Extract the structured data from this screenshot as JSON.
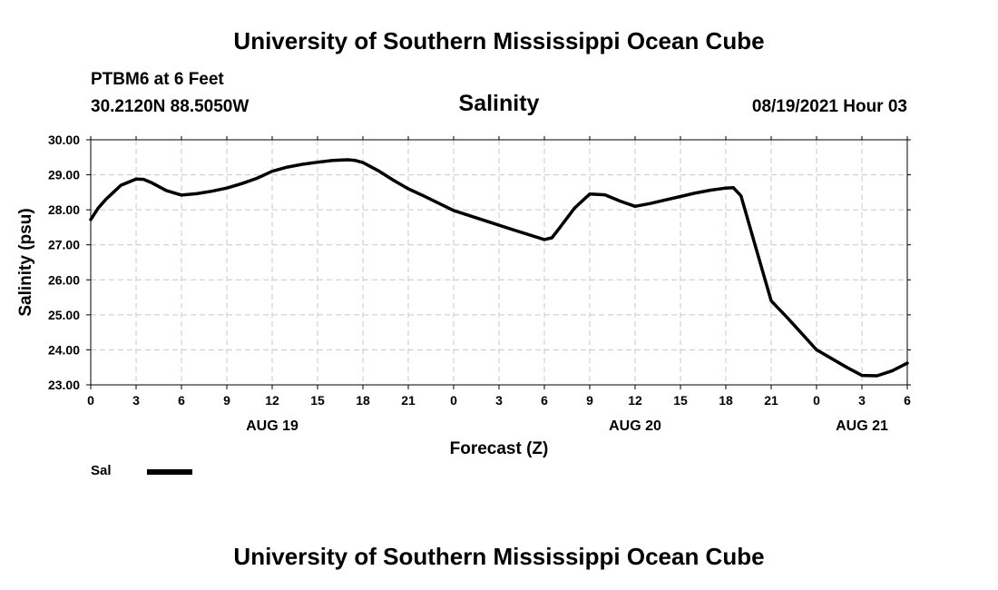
{
  "header": {
    "title": "University of Southern Mississippi Ocean Cube",
    "station": "PTBM6 at 6 Feet",
    "coordinates": "30.2120N  88.5050W",
    "variable_title": "Salinity",
    "datetime": "08/19/2021 Hour 03"
  },
  "footer": {
    "title": "University of Southern Mississippi Ocean Cube"
  },
  "legend": {
    "label": "Sal",
    "color": "#000000"
  },
  "chart_data": {
    "type": "line",
    "title": "Salinity",
    "xlabel": "Forecast (Z)",
    "ylabel": "Salinity (psu)",
    "xlim": [
      0,
      54
    ],
    "ylim": [
      23.0,
      30.0
    ],
    "grid": true,
    "x_tick_values": [
      0,
      3,
      6,
      9,
      12,
      15,
      18,
      21,
      24,
      27,
      30,
      33,
      36,
      39,
      42,
      45,
      48,
      51,
      54
    ],
    "x_tick_labels": [
      "0",
      "3",
      "6",
      "9",
      "12",
      "15",
      "18",
      "21",
      "0",
      "3",
      "6",
      "9",
      "12",
      "15",
      "18",
      "21",
      "0",
      "3",
      "6"
    ],
    "y_tick_values": [
      23,
      24,
      25,
      26,
      27,
      28,
      29,
      30
    ],
    "y_tick_labels": [
      "23.00",
      "24.00",
      "25.00",
      "26.00",
      "27.00",
      "28.00",
      "29.00",
      "30.00"
    ],
    "date_labels": [
      {
        "x": 12,
        "label": "AUG 19"
      },
      {
        "x": 36,
        "label": "AUG 20"
      },
      {
        "x": 51,
        "label": "AUG 21"
      }
    ],
    "series": [
      {
        "name": "Sal",
        "x": [
          0,
          0.5,
          1,
          2,
          3,
          3.5,
          4,
          5,
          6,
          7,
          8,
          9,
          10,
          11,
          12,
          13,
          14,
          15,
          16,
          17,
          17.5,
          18,
          19,
          20,
          21,
          22,
          24,
          26,
          28,
          30,
          30.5,
          31,
          32,
          33,
          34,
          35,
          36,
          37,
          38,
          39,
          40,
          41,
          42,
          42.5,
          43,
          44,
          45,
          46,
          48,
          50,
          51,
          52,
          53,
          54
        ],
        "values": [
          27.72,
          28.05,
          28.3,
          28.7,
          28.88,
          28.87,
          28.78,
          28.55,
          28.42,
          28.46,
          28.53,
          28.62,
          28.75,
          28.9,
          29.1,
          29.22,
          29.3,
          29.36,
          29.41,
          29.43,
          29.41,
          29.35,
          29.12,
          28.85,
          28.6,
          28.4,
          27.98,
          27.7,
          27.42,
          27.15,
          27.2,
          27.48,
          28.05,
          28.45,
          28.43,
          28.25,
          28.1,
          28.18,
          28.28,
          28.38,
          28.48,
          28.56,
          28.62,
          28.63,
          28.4,
          26.9,
          25.4,
          24.95,
          24.0,
          23.5,
          23.27,
          23.26,
          23.4,
          23.62
        ]
      }
    ]
  }
}
